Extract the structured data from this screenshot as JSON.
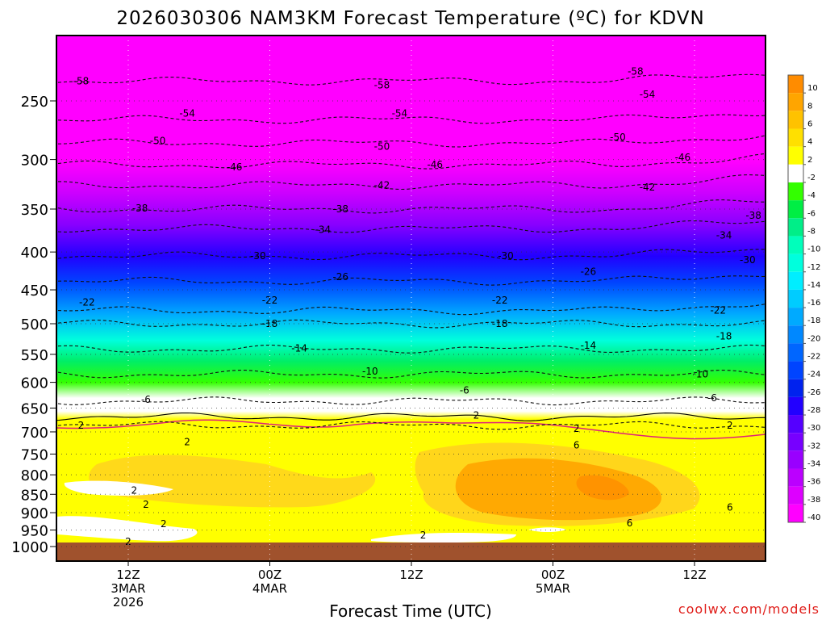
{
  "chart_data": {
    "type": "heatmap",
    "title": "2026030306 NAM3KM Forecast Temperature (ºC) for KDVN",
    "xlabel": "Forecast Time (UTC)",
    "ylabel": "",
    "credit": "coolwx.com/models",
    "y_ticks": [
      "250",
      "300",
      "350",
      "400",
      "450",
      "500",
      "550",
      "600",
      "650",
      "700",
      "750",
      "800",
      "850",
      "900",
      "950",
      "1000"
    ],
    "x_ticks": [
      {
        "lines": [
          "12Z",
          "3MAR",
          "2026"
        ]
      },
      {
        "lines": [
          "00Z",
          "4MAR"
        ]
      },
      {
        "lines": [
          "12Z"
        ]
      },
      {
        "lines": [
          "00Z",
          "5MAR"
        ]
      },
      {
        "lines": [
          "12Z"
        ]
      }
    ],
    "colorbar_labels": [
      "10",
      "8",
      "6",
      "4",
      "2",
      "-2",
      "-4",
      "-6",
      "-8",
      "-10",
      "-12",
      "-14",
      "-16",
      "-18",
      "-20",
      "-22",
      "-24",
      "-26",
      "-28",
      "-30",
      "-32",
      "-34",
      "-36",
      "-38",
      "-40"
    ],
    "colorbar_colors": [
      "#ff8c00",
      "#ffa500",
      "#ffc200",
      "#ffe000",
      "#ffff00",
      "#ffffff",
      "#33ff00",
      "#00ee44",
      "#00ee88",
      "#00ffbb",
      "#00ffdd",
      "#00eeff",
      "#00ccff",
      "#00aaff",
      "#0088ff",
      "#0066ff",
      "#0044ff",
      "#0022ee",
      "#2200ff",
      "#5500ff",
      "#7700ff",
      "#9900ff",
      "#bb00ff",
      "#dd00ff",
      "#ff00ff"
    ],
    "contours": [
      {
        "value": -58,
        "label": "-58",
        "pressure": 235
      },
      {
        "value": -54,
        "label": "-54",
        "pressure": 265
      },
      {
        "value": -50,
        "label": "-50",
        "pressure": 285
      },
      {
        "value": -46,
        "label": "-46",
        "pressure": 305
      },
      {
        "value": -42,
        "label": "-42",
        "pressure": 325
      },
      {
        "value": -38,
        "label": "-38",
        "pressure": 350
      },
      {
        "value": -34,
        "label": "-34",
        "pressure": 372
      },
      {
        "value": -30,
        "label": "-30",
        "pressure": 405
      },
      {
        "value": -26,
        "label": "-26",
        "pressure": 438
      },
      {
        "value": -22,
        "label": "-22",
        "pressure": 480
      },
      {
        "value": -18,
        "label": "-18",
        "pressure": 500
      },
      {
        "value": -14,
        "label": "-14",
        "pressure": 541
      },
      {
        "value": -10,
        "label": "-10",
        "pressure": 585
      },
      {
        "value": -6,
        "label": "-6",
        "pressure": 636
      },
      {
        "value": 2,
        "label": "2",
        "pressure": 668
      },
      {
        "value": 0,
        "label": "",
        "pressure": 686
      }
    ],
    "contour_labels": [
      {
        "text": "-58",
        "x": -4,
        "p": 235
      },
      {
        "text": "-58",
        "x": 21.5,
        "p": 238
      },
      {
        "text": "-58",
        "x": 43,
        "p": 228
      },
      {
        "text": "-54",
        "x": 5,
        "p": 260
      },
      {
        "text": "-54",
        "x": 23,
        "p": 260
      },
      {
        "text": "-54",
        "x": 44,
        "p": 245
      },
      {
        "text": "-50",
        "x": 2.5,
        "p": 283
      },
      {
        "text": "-50",
        "x": 21.5,
        "p": 288
      },
      {
        "text": "-50",
        "x": 41.5,
        "p": 280
      },
      {
        "text": "-46",
        "x": 9,
        "p": 307
      },
      {
        "text": "-46",
        "x": 26,
        "p": 305
      },
      {
        "text": "-46",
        "x": 47,
        "p": 298
      },
      {
        "text": "-42",
        "x": 21.5,
        "p": 325
      },
      {
        "text": "-42",
        "x": 44,
        "p": 327
      },
      {
        "text": "-38",
        "x": 1,
        "p": 349
      },
      {
        "text": "-38",
        "x": 18,
        "p": 350
      },
      {
        "text": "-38",
        "x": 53,
        "p": 357
      },
      {
        "text": "-34",
        "x": 16.5,
        "p": 373
      },
      {
        "text": "-34",
        "x": 50.5,
        "p": 380
      },
      {
        "text": "-30",
        "x": 11,
        "p": 405
      },
      {
        "text": "-30",
        "x": 32,
        "p": 405
      },
      {
        "text": "-30",
        "x": 52.5,
        "p": 410
      },
      {
        "text": "-26",
        "x": 18,
        "p": 432
      },
      {
        "text": "-26",
        "x": 39,
        "p": 425
      },
      {
        "text": "-22",
        "x": -3.5,
        "p": 468
      },
      {
        "text": "-22",
        "x": 12,
        "p": 465
      },
      {
        "text": "-22",
        "x": 31.5,
        "p": 465
      },
      {
        "text": "-22",
        "x": 50,
        "p": 480
      },
      {
        "text": "-18",
        "x": 12,
        "p": 500
      },
      {
        "text": "-18",
        "x": 31.5,
        "p": 500
      },
      {
        "text": "-18",
        "x": 50.5,
        "p": 520
      },
      {
        "text": "-14",
        "x": 14.5,
        "p": 540
      },
      {
        "text": "-14",
        "x": 39,
        "p": 535
      },
      {
        "text": "-10",
        "x": 20.5,
        "p": 580
      },
      {
        "text": "-10",
        "x": 48.5,
        "p": 585
      },
      {
        "text": "-6",
        "x": 1.5,
        "p": 633
      },
      {
        "text": "-6",
        "x": 28.5,
        "p": 615
      },
      {
        "text": "-6",
        "x": 49.5,
        "p": 630
      },
      {
        "text": "2",
        "x": -4,
        "p": 686
      },
      {
        "text": "2",
        "x": 29.5,
        "p": 665
      },
      {
        "text": "2",
        "x": 51,
        "p": 686
      },
      {
        "text": "2",
        "x": 38,
        "p": 693
      },
      {
        "text": "6",
        "x": 38,
        "p": 730
      },
      {
        "text": "2",
        "x": 5,
        "p": 722
      },
      {
        "text": "2",
        "x": 0.5,
        "p": 840
      },
      {
        "text": "2",
        "x": 1.5,
        "p": 878
      },
      {
        "text": "2",
        "x": 3,
        "p": 932
      },
      {
        "text": "2",
        "x": 0,
        "p": 985
      },
      {
        "text": "2",
        "x": 25,
        "p": 965
      },
      {
        "text": "6",
        "x": 51,
        "p": 885
      },
      {
        "text": "6",
        "x": 42.5,
        "p": 930
      }
    ]
  }
}
